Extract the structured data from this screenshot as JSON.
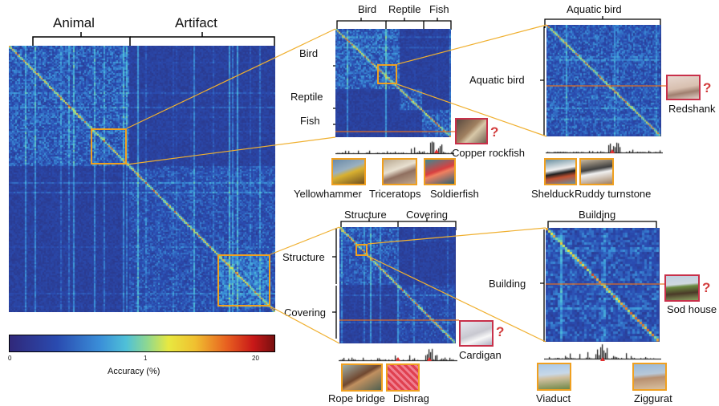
{
  "main": {
    "top_labels": [
      "Animal",
      "Artifact"
    ]
  },
  "colorbar": {
    "title": "Accuracy (%)",
    "ticks": [
      "0",
      "1",
      "20"
    ]
  },
  "panels": {
    "animal_zoom": {
      "top_labels": [
        "Bird",
        "Reptile",
        "Fish"
      ],
      "side_labels": [
        "Bird",
        "Reptile",
        "Fish"
      ],
      "query": "Copper rockfish",
      "examples": [
        "Yellowhammer",
        "Triceratops",
        "Soldierfish"
      ]
    },
    "bird_zoom": {
      "top_label": "Aquatic bird",
      "side_label": "Aquatic bird",
      "query": "Redshank",
      "examples": [
        "Shelduck",
        "Ruddy turnstone"
      ]
    },
    "artifact_zoom": {
      "top_labels": [
        "Structure",
        "Covering"
      ],
      "side_labels": [
        "Structure",
        "Covering"
      ],
      "query": "Cardigan",
      "examples": [
        "Rope bridge",
        "Dishrag"
      ]
    },
    "structure_zoom": {
      "top_label": "Building",
      "side_label": "Building",
      "query": "Sod house",
      "examples": [
        "Viaduct",
        "Ziggurat"
      ]
    }
  },
  "query_mark": "?",
  "colors": {
    "matrix_low": "#2a3a8f",
    "accent_orange": "#f0a020",
    "query_red": "#c8304a"
  }
}
